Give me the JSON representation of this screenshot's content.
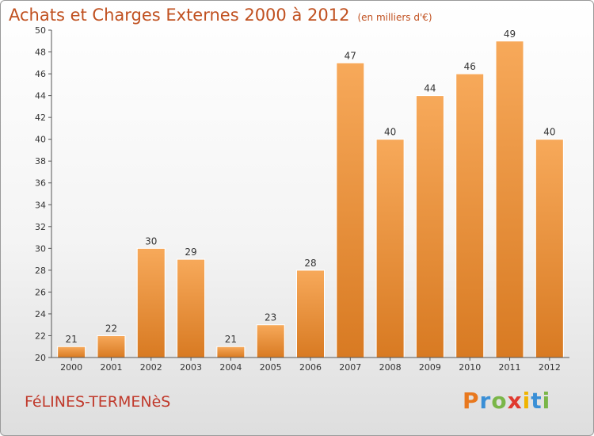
{
  "header": {
    "title": "Achats et Charges Externes 2000 à 2012",
    "subtitle": "(en milliers d'€)"
  },
  "footer": {
    "commune": "FéLINES-TERMENèS",
    "logo_letters": [
      "P",
      "r",
      "o",
      "x",
      "i",
      "t",
      "i"
    ],
    "logo_colors": [
      "#e8781e",
      "#3a8fd6",
      "#7ab648",
      "#e03a2f",
      "#f0b400",
      "#3a8fd6",
      "#7ab648"
    ]
  },
  "colors": {
    "bar_top": "#f7a95a",
    "bar_bottom": "#d87a22",
    "title": "#c0501f",
    "axis": "#555555"
  },
  "chart_data": {
    "type": "bar",
    "categories": [
      "2000",
      "2001",
      "2002",
      "2003",
      "2004",
      "2005",
      "2006",
      "2007",
      "2008",
      "2009",
      "2010",
      "2011",
      "2012"
    ],
    "values": [
      21,
      22,
      30,
      29,
      21,
      23,
      28,
      47,
      40,
      44,
      46,
      49,
      40
    ],
    "ylim": [
      20,
      50
    ],
    "yticks": [
      20,
      22,
      24,
      26,
      28,
      30,
      32,
      34,
      36,
      38,
      40,
      42,
      44,
      46,
      48,
      50
    ],
    "grid": false,
    "xlabel": "",
    "ylabel": ""
  }
}
